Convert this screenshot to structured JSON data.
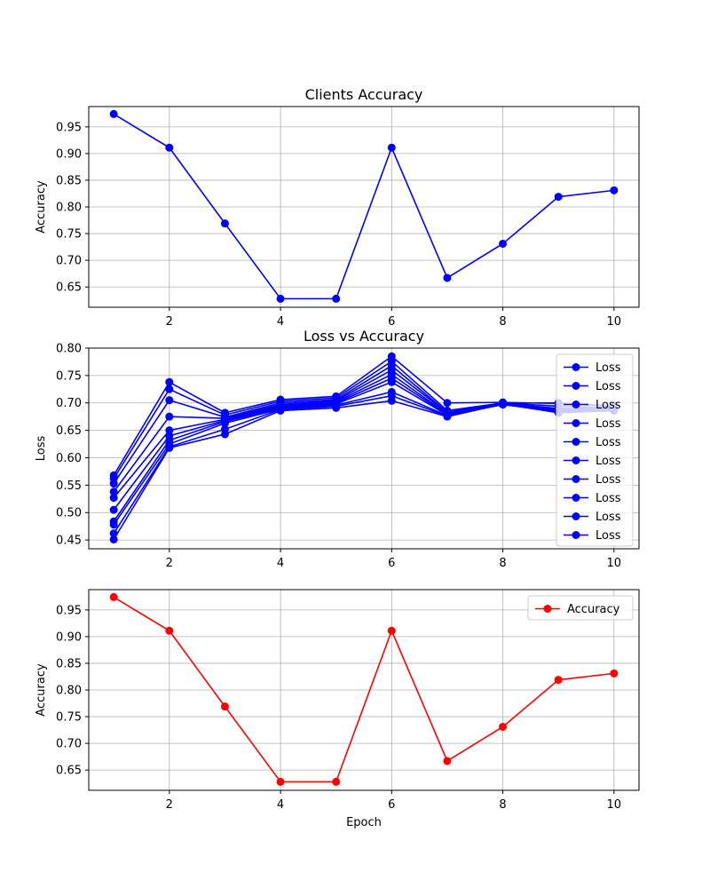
{
  "chart_data": [
    {
      "type": "line",
      "title": "Clients Accuracy",
      "xlabel": "",
      "ylabel": "Accuracy",
      "xlim": [
        0.55,
        10.45
      ],
      "ylim": [
        0.612,
        0.988
      ],
      "xticks": [
        2,
        4,
        6,
        8,
        10
      ],
      "yticks": [
        0.65,
        0.7,
        0.75,
        0.8,
        0.85,
        0.9,
        0.95
      ],
      "grid": true,
      "legend": "none",
      "x": [
        1,
        2,
        3,
        4,
        5,
        6,
        7,
        8,
        9,
        10
      ],
      "series": [
        {
          "color": "#0000ff",
          "values": [
            0.974,
            0.911,
            0.769,
            0.628,
            0.628,
            0.911,
            0.667,
            0.731,
            0.819,
            0.831
          ]
        }
      ]
    },
    {
      "type": "line",
      "title": "Loss vs Accuracy",
      "xlabel": "",
      "ylabel": "Loss",
      "xlim": [
        0.55,
        10.45
      ],
      "ylim": [
        0.434,
        0.8
      ],
      "xticks": [
        2,
        4,
        6,
        8,
        10
      ],
      "yticks": [
        0.45,
        0.5,
        0.55,
        0.6,
        0.65,
        0.7,
        0.75,
        0.8
      ],
      "grid": true,
      "legend": "top-right",
      "x": [
        1,
        2,
        3,
        4,
        5,
        6,
        7,
        8,
        9,
        10
      ],
      "series": [
        {
          "name": "Loss",
          "color": "#0000ff",
          "values": [
            0.568,
            0.738,
            0.682,
            0.706,
            0.712,
            0.785,
            0.7,
            0.701,
            0.699,
            0.695
          ]
        },
        {
          "name": "Loss",
          "color": "#0000ff",
          "values": [
            0.562,
            0.725,
            0.678,
            0.703,
            0.709,
            0.776,
            0.686,
            0.7,
            0.7,
            0.693
          ]
        },
        {
          "name": "Loss",
          "color": "#0000ff",
          "values": [
            0.553,
            0.705,
            0.674,
            0.7,
            0.706,
            0.768,
            0.683,
            0.7,
            0.694,
            0.691
          ]
        },
        {
          "name": "Loss",
          "color": "#0000ff",
          "values": [
            0.538,
            0.675,
            0.672,
            0.697,
            0.704,
            0.76,
            0.682,
            0.699,
            0.69,
            0.69
          ]
        },
        {
          "name": "Loss",
          "color": "#0000ff",
          "values": [
            0.527,
            0.65,
            0.67,
            0.695,
            0.702,
            0.752,
            0.68,
            0.698,
            0.688,
            0.689
          ]
        },
        {
          "name": "Loss",
          "color": "#0000ff",
          "values": [
            0.505,
            0.64,
            0.668,
            0.693,
            0.7,
            0.745,
            0.679,
            0.698,
            0.686,
            0.688
          ]
        },
        {
          "name": "Loss",
          "color": "#0000ff",
          "values": [
            0.484,
            0.632,
            0.666,
            0.691,
            0.698,
            0.738,
            0.678,
            0.697,
            0.685,
            0.688
          ]
        },
        {
          "name": "Loss",
          "color": "#0000ff",
          "values": [
            0.478,
            0.625,
            0.663,
            0.689,
            0.696,
            0.72,
            0.677,
            0.697,
            0.684,
            0.687
          ]
        },
        {
          "name": "Loss",
          "color": "#0000ff",
          "values": [
            0.462,
            0.62,
            0.652,
            0.688,
            0.694,
            0.713,
            0.676,
            0.698,
            0.683,
            0.687
          ]
        },
        {
          "name": "Loss",
          "color": "#0000ff",
          "values": [
            0.451,
            0.618,
            0.643,
            0.686,
            0.691,
            0.704,
            0.675,
            0.698,
            0.682,
            0.686
          ]
        }
      ]
    },
    {
      "type": "line",
      "title": "",
      "xlabel": "Epoch",
      "ylabel": "Accuracy",
      "xlim": [
        0.55,
        10.45
      ],
      "ylim": [
        0.612,
        0.988
      ],
      "xticks": [
        2,
        4,
        6,
        8,
        10
      ],
      "yticks": [
        0.65,
        0.7,
        0.75,
        0.8,
        0.85,
        0.9,
        0.95
      ],
      "grid": true,
      "legend": "top-right",
      "x": [
        1,
        2,
        3,
        4,
        5,
        6,
        7,
        8,
        9,
        10
      ],
      "series": [
        {
          "name": "Accuracy",
          "color": "#ff0000",
          "values": [
            0.974,
            0.911,
            0.769,
            0.628,
            0.628,
            0.911,
            0.667,
            0.731,
            0.819,
            0.831
          ]
        }
      ]
    }
  ]
}
